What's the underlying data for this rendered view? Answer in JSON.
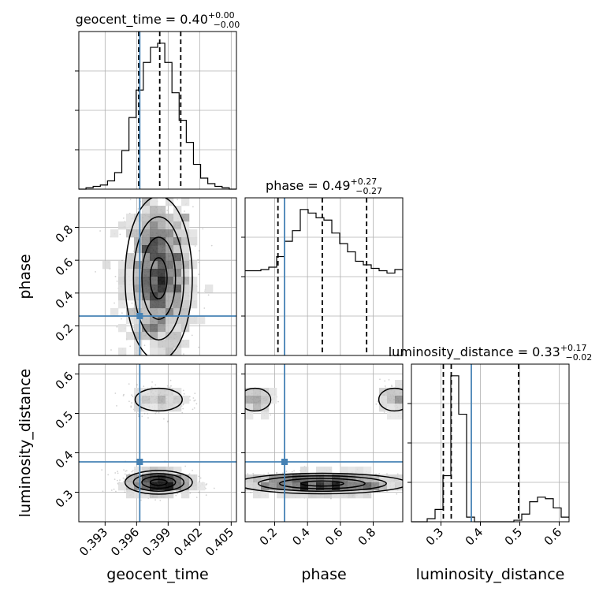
{
  "figure": {
    "truth_color": "#4682b4"
  },
  "chart_data": {
    "type": "corner",
    "parameters": [
      {
        "name": "geocent_time",
        "axis_label": "geocent_time",
        "title_base": "geocent_time = 0.40",
        "title_sup": "+0.00",
        "title_sub": "−0.00",
        "range": [
          0.3905,
          0.4055
        ],
        "ticks": [
          0.393,
          0.396,
          0.399,
          0.402,
          0.405
        ],
        "tick_labels": [
          "0.393",
          "0.396",
          "0.399",
          "0.402",
          "0.405"
        ],
        "truth": 0.3963,
        "quantiles": [
          0.3962,
          0.3982,
          0.4002
        ],
        "hist_edges_range": [
          0.3905,
          0.4055
        ],
        "hist_values": [
          0,
          1,
          2,
          3,
          6,
          12,
          28,
          52,
          72,
          92,
          103,
          106,
          92,
          70,
          50,
          34,
          18,
          8,
          4,
          2,
          1,
          0
        ]
      },
      {
        "name": "phase",
        "axis_label": "phase",
        "title_base": "phase = 0.49",
        "title_sup": "+0.27",
        "title_sub": "−0.27",
        "range": [
          0.02,
          0.98
        ],
        "ticks": [
          0.2,
          0.4,
          0.6,
          0.8
        ],
        "tick_labels": [
          "0.2",
          "0.4",
          "0.6",
          "0.8"
        ],
        "truth": 0.26,
        "quantiles": [
          0.22,
          0.49,
          0.76
        ],
        "hist_edges_range": [
          0.02,
          0.98
        ],
        "hist_values": [
          72,
          72,
          73,
          75,
          84,
          97,
          106,
          124,
          121,
          117,
          115,
          104,
          95,
          88,
          80,
          77,
          74,
          72,
          70,
          73
        ]
      },
      {
        "name": "luminosity_distance",
        "axis_label": "luminosity_distance",
        "title_base": "luminosity_distance = 0.33",
        "title_sup": "+0.17",
        "title_sub": "−0.02",
        "range": [
          0.225,
          0.625
        ],
        "ticks": [
          0.3,
          0.4,
          0.5,
          0.6
        ],
        "tick_labels": [
          "0.3",
          "0.4",
          "0.5",
          "0.6"
        ],
        "truth": 0.377,
        "quantiles": [
          0.306,
          0.326,
          0.497
        ],
        "hist_edges_range": [
          0.225,
          0.625
        ],
        "hist_values": [
          0,
          0,
          2,
          8,
          30,
          95,
          70,
          3,
          0,
          0,
          0,
          0,
          0,
          1,
          5,
          13,
          16,
          15,
          9,
          3
        ]
      }
    ],
    "scatter_blobs": [
      {
        "x": 0,
        "y": 1,
        "cx": 0.3981,
        "cy": 0.49,
        "sx": 0.0016,
        "sy": 0.25,
        "w": 1
      },
      {
        "x": 0,
        "y": 2,
        "cx": 0.3981,
        "cy": 0.325,
        "sx": 0.0016,
        "sy": 0.015,
        "w": 0.8
      },
      {
        "x": 0,
        "y": 2,
        "cx": 0.3981,
        "cy": 0.535,
        "sx": 0.0014,
        "sy": 0.018,
        "w": 0.2
      },
      {
        "x": 1,
        "y": 2,
        "cx": 0.49,
        "cy": 0.322,
        "sx": 0.26,
        "sy": 0.013,
        "w": 0.8
      },
      {
        "x": 1,
        "y": 2,
        "cx": 0.08,
        "cy": 0.535,
        "sx": 0.06,
        "sy": 0.018,
        "w": 0.1
      },
      {
        "x": 1,
        "y": 2,
        "cx": 0.93,
        "cy": 0.535,
        "sx": 0.06,
        "sy": 0.018,
        "w": 0.1
      }
    ],
    "truth_markers": [
      {
        "x": 0,
        "y": 1
      },
      {
        "x": 0,
        "y": 2
      },
      {
        "x": 1,
        "y": 2
      }
    ],
    "grid": true
  }
}
